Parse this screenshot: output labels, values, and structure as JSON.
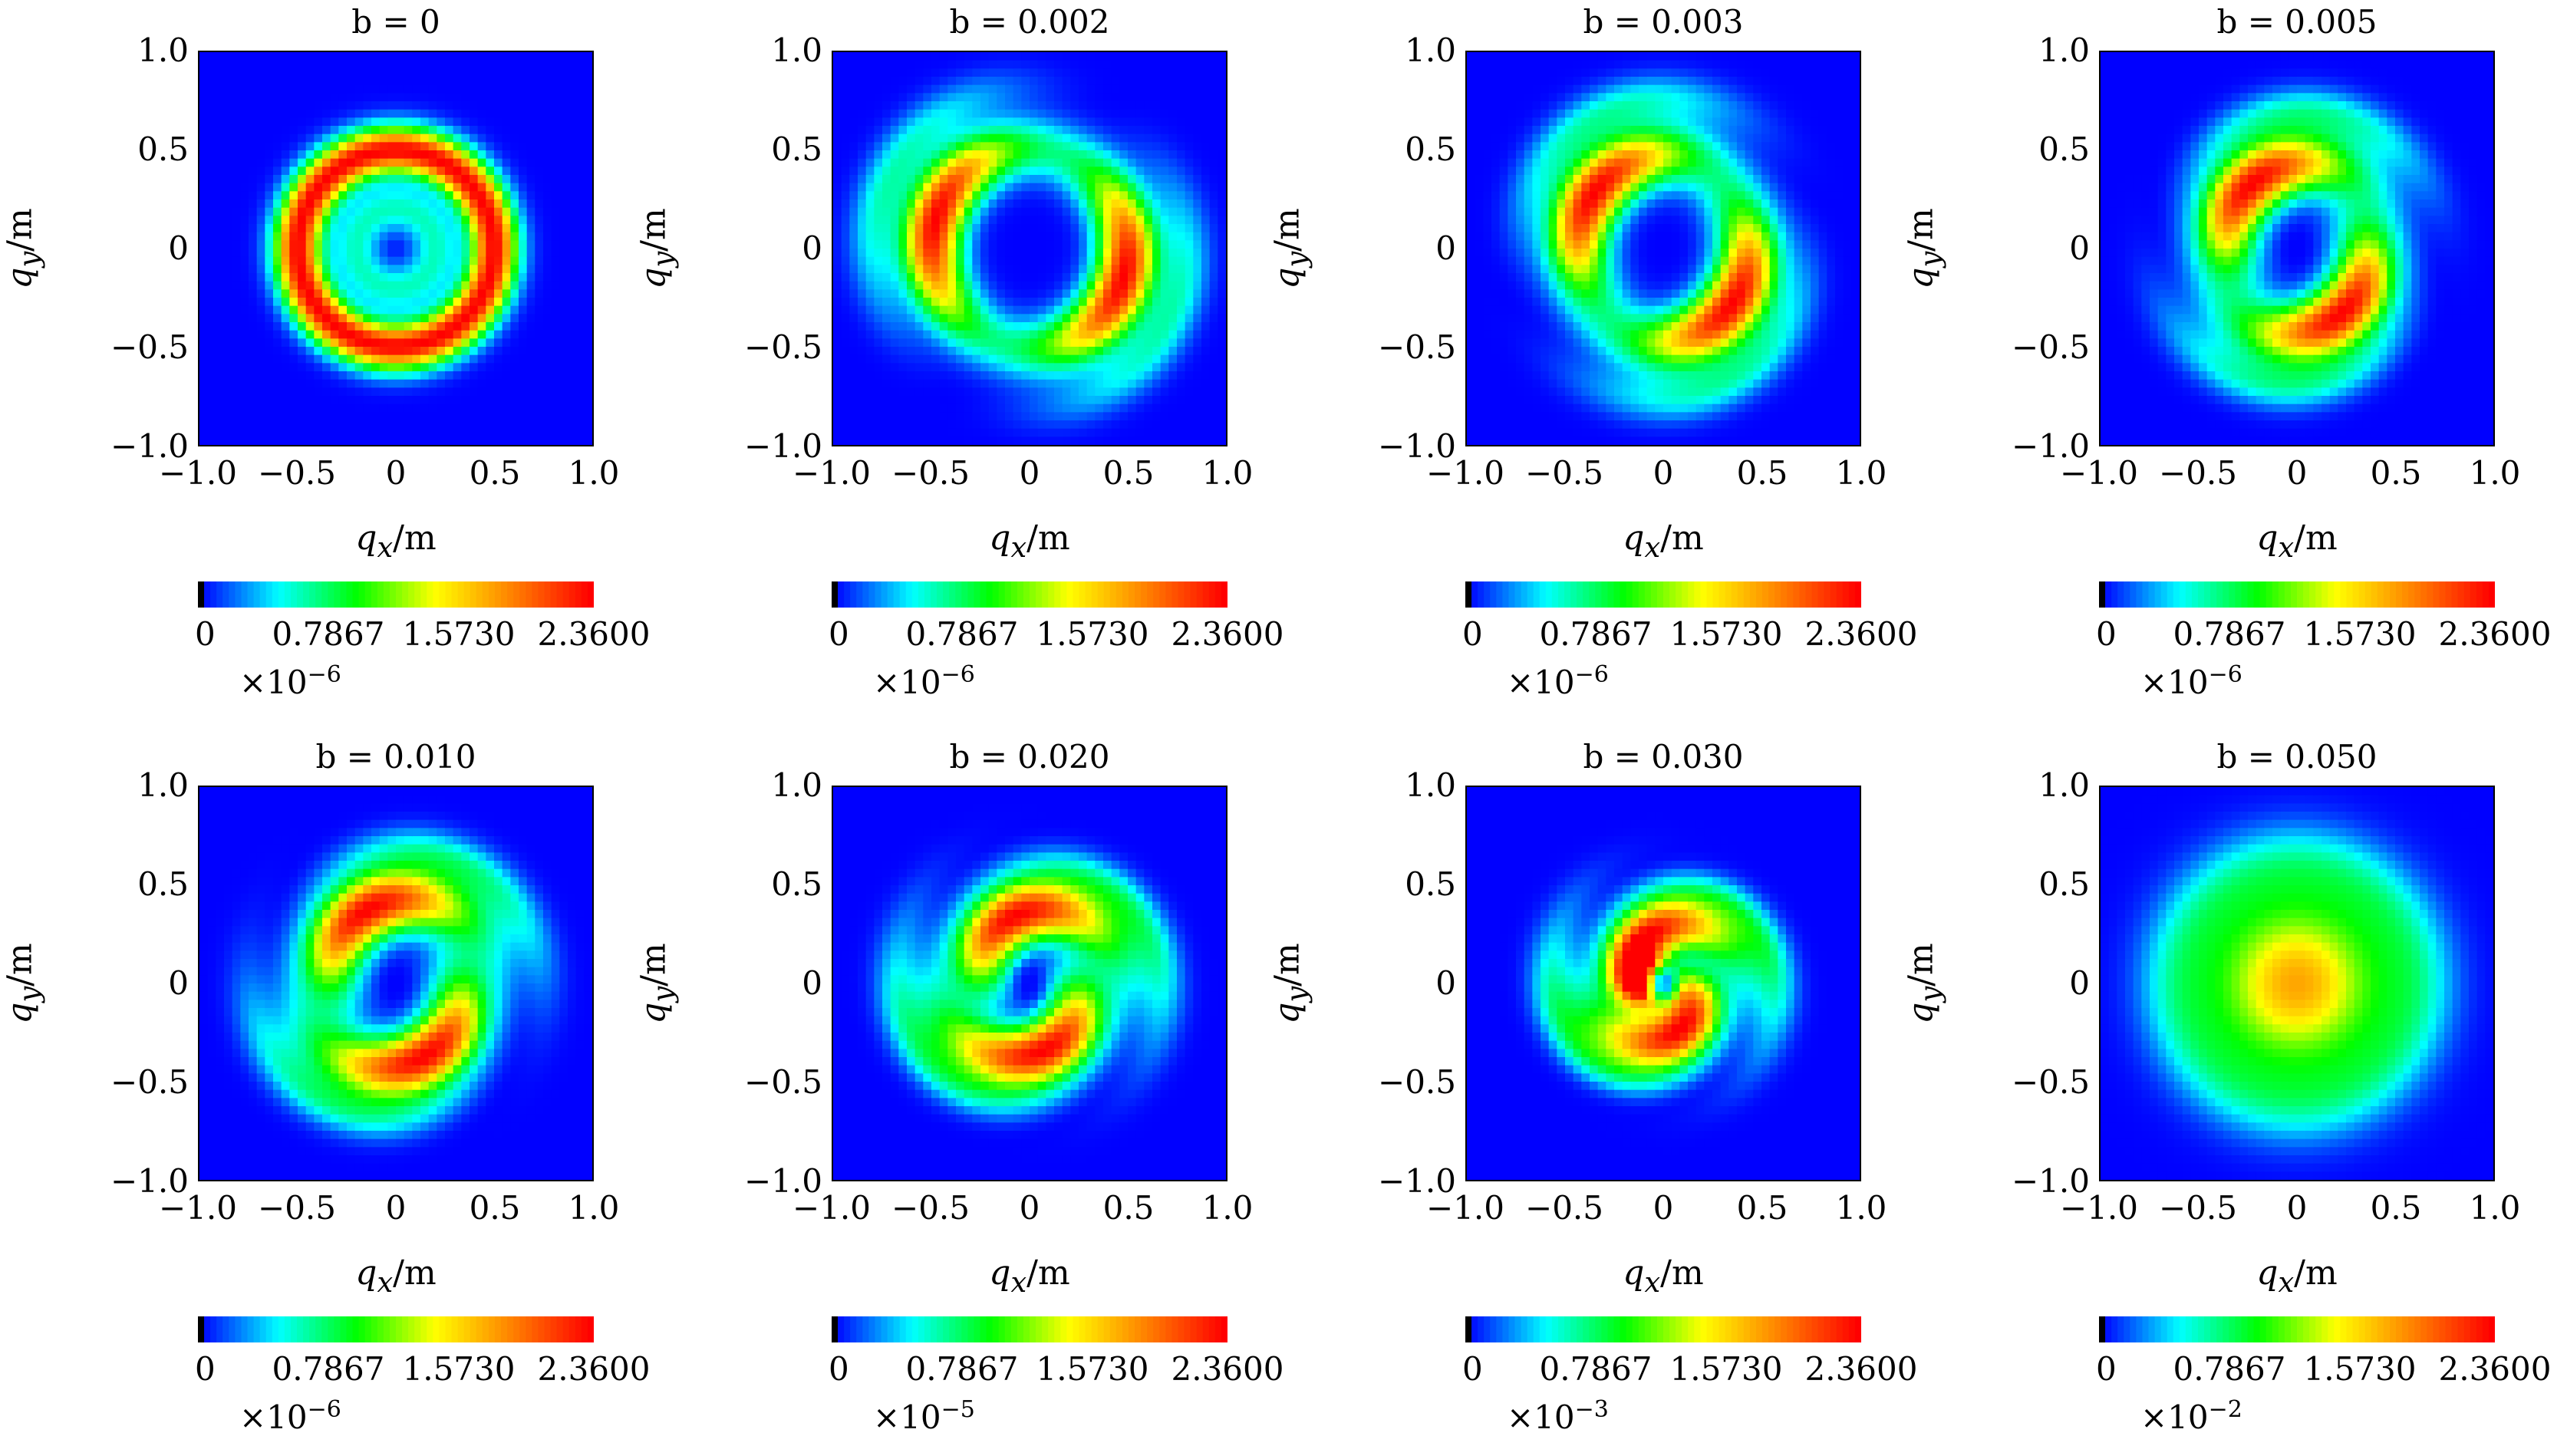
{
  "figure": {
    "xlabel_var": "q",
    "xlabel_sub": "x",
    "xlabel_unit": "/m",
    "ylabel_var": "q",
    "ylabel_sub": "y",
    "ylabel_unit": "/m"
  },
  "chart_data": [
    {
      "type": "heatmap",
      "title": "b = 0",
      "b": "0",
      "xlim": [
        -1.0,
        1.0
      ],
      "ylim": [
        -1.0,
        1.0
      ],
      "xticks": [
        "−1.0",
        "−0.5",
        "0",
        "0.5",
        "1.0"
      ],
      "yticks": [
        "1.0",
        "0.5",
        "0",
        "−0.5",
        "−1.0"
      ],
      "colorbar_ticks": [
        "0",
        "0.7867",
        "1.5730",
        "2.3600"
      ],
      "colorbar_scale_base": "×10",
      "colorbar_scale_exp": "−6",
      "pattern": "ring",
      "ring_radius": 0.5,
      "swirl": 0.0,
      "peak_value": 2.36
    },
    {
      "type": "heatmap",
      "title": "b = 0.002",
      "b": "0.002",
      "xlim": [
        -1.0,
        1.0
      ],
      "ylim": [
        -1.0,
        1.0
      ],
      "xticks": [
        "−1.0",
        "−0.5",
        "0",
        "0.5",
        "1.0"
      ],
      "yticks": [
        "1.0",
        "0.5",
        "0",
        "−0.5",
        "−1.0"
      ],
      "colorbar_ticks": [
        "0",
        "0.7867",
        "1.5730",
        "2.3600"
      ],
      "colorbar_scale_base": "×10",
      "colorbar_scale_exp": "−6",
      "pattern": "ring-swirl",
      "ring_radius": 0.5,
      "swirl": 0.2,
      "peak_value": 2.36
    },
    {
      "type": "heatmap",
      "title": "b = 0.003",
      "b": "0.003",
      "xlim": [
        -1.0,
        1.0
      ],
      "ylim": [
        -1.0,
        1.0
      ],
      "xticks": [
        "−1.0",
        "−0.5",
        "0",
        "0.5",
        "1.0"
      ],
      "yticks": [
        "1.0",
        "0.5",
        "0",
        "−0.5",
        "−1.0"
      ],
      "colorbar_ticks": [
        "0",
        "0.7867",
        "1.5730",
        "2.3600"
      ],
      "colorbar_scale_base": "×10",
      "colorbar_scale_exp": "−6",
      "pattern": "spiral",
      "ring_radius": 0.45,
      "swirl": 0.5,
      "peak_value": 2.36
    },
    {
      "type": "heatmap",
      "title": "b = 0.005",
      "b": "0.005",
      "xlim": [
        -1.0,
        1.0
      ],
      "ylim": [
        -1.0,
        1.0
      ],
      "xticks": [
        "−1.0",
        "−0.5",
        "0",
        "0.5",
        "1.0"
      ],
      "yticks": [
        "1.0",
        "0.5",
        "0",
        "−0.5",
        "−1.0"
      ],
      "colorbar_ticks": [
        "0",
        "0.7867",
        "1.5730",
        "2.3600"
      ],
      "colorbar_scale_base": "×10",
      "colorbar_scale_exp": "−6",
      "pattern": "spiral",
      "ring_radius": 0.4,
      "swirl": 0.8,
      "peak_value": 2.36
    },
    {
      "type": "heatmap",
      "title": "b = 0.010",
      "b": "0.010",
      "xlim": [
        -1.0,
        1.0
      ],
      "ylim": [
        -1.0,
        1.0
      ],
      "xticks": [
        "−1.0",
        "−0.5",
        "0",
        "0.5",
        "1.0"
      ],
      "yticks": [
        "1.0",
        "0.5",
        "0",
        "−0.5",
        "−1.0"
      ],
      "colorbar_ticks": [
        "0",
        "0.7867",
        "1.5730",
        "2.3600"
      ],
      "colorbar_scale_base": "×10",
      "colorbar_scale_exp": "−6",
      "pattern": "spiral",
      "ring_radius": 0.4,
      "swirl": 1.0,
      "peak_value": 2.36
    },
    {
      "type": "heatmap",
      "title": "b = 0.020",
      "b": "0.020",
      "xlim": [
        -1.0,
        1.0
      ],
      "ylim": [
        -1.0,
        1.0
      ],
      "xticks": [
        "−1.0",
        "−0.5",
        "0",
        "0.5",
        "1.0"
      ],
      "yticks": [
        "1.0",
        "0.5",
        "0",
        "−0.5",
        "−1.0"
      ],
      "colorbar_ticks": [
        "0",
        "0.7867",
        "1.5730",
        "2.3600"
      ],
      "colorbar_scale_base": "×10",
      "colorbar_scale_exp": "−5",
      "pattern": "spiral",
      "ring_radius": 0.35,
      "swirl": 1.3,
      "peak_value": 2.36
    },
    {
      "type": "heatmap",
      "title": "b = 0.030",
      "b": "0.030",
      "xlim": [
        -1.0,
        1.0
      ],
      "ylim": [
        -1.0,
        1.0
      ],
      "xticks": [
        "−1.0",
        "−0.5",
        "0",
        "0.5",
        "1.0"
      ],
      "yticks": [
        "1.0",
        "0.5",
        "0",
        "−0.5",
        "−1.0"
      ],
      "colorbar_ticks": [
        "0",
        "0.7867",
        "1.5730",
        "2.3600"
      ],
      "colorbar_scale_base": "×10",
      "colorbar_scale_exp": "−3",
      "pattern": "core-spiral",
      "ring_radius": 0.25,
      "swirl": 1.6,
      "peak_value": 2.36
    },
    {
      "type": "heatmap",
      "title": "b = 0.050",
      "b": "0.050",
      "xlim": [
        -1.0,
        1.0
      ],
      "ylim": [
        -1.0,
        1.0
      ],
      "xticks": [
        "−1.0",
        "−0.5",
        "0",
        "0.5",
        "1.0"
      ],
      "yticks": [
        "1.0",
        "0.5",
        "0",
        "−0.5",
        "−1.0"
      ],
      "colorbar_ticks": [
        "0",
        "0.7867",
        "1.5730",
        "2.3600"
      ],
      "colorbar_scale_base": "×10",
      "colorbar_scale_exp": "−2",
      "pattern": "blob",
      "ring_radius": 0.0,
      "swirl": 0.3,
      "peak_value": 1.75
    }
  ],
  "colormap": [
    "#000000",
    "#0000ff",
    "#00ffff",
    "#00ff00",
    "#ffff00",
    "#ff8000",
    "#ff0000"
  ]
}
